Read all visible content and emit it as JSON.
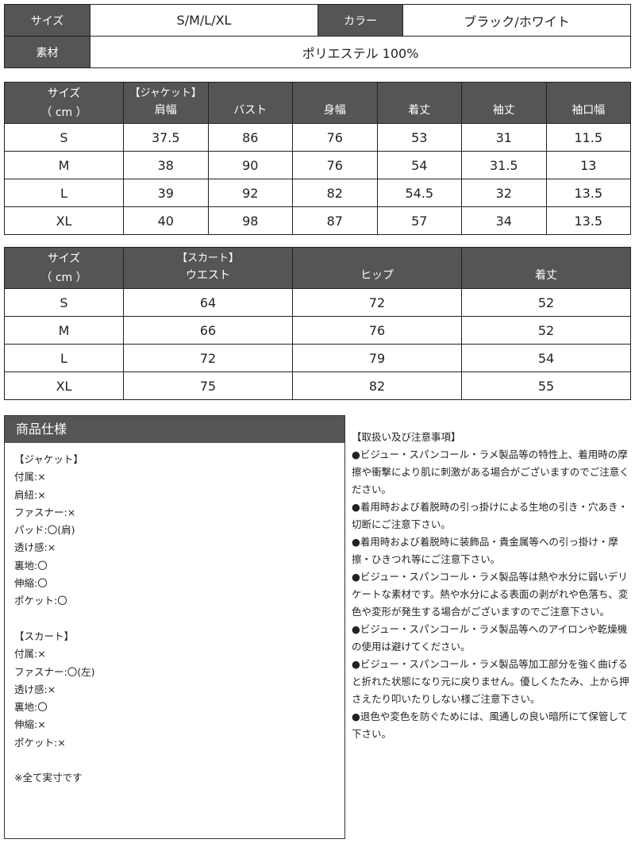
{
  "info": {
    "size_label": "サイズ",
    "size_value": "S/M/L/XL",
    "color_label": "カラー",
    "color_value": "ブラック/ホワイト",
    "material_label": "素材",
    "material_value": "ポリエステル 100%"
  },
  "jacket": {
    "size_header": "サイズ",
    "unit": "（ cm ）",
    "group": "【ジャケット】",
    "columns": [
      "肩幅",
      "バスト",
      "身幅",
      "着丈",
      "袖丈",
      "袖口幅"
    ],
    "rows": [
      [
        "S",
        "37.5",
        "86",
        "76",
        "53",
        "31",
        "11.5"
      ],
      [
        "M",
        "38",
        "90",
        "76",
        "54",
        "31.5",
        "13"
      ],
      [
        "L",
        "39",
        "92",
        "82",
        "54.5",
        "32",
        "13.5"
      ],
      [
        "XL",
        "40",
        "98",
        "87",
        "57",
        "34",
        "13.5"
      ]
    ]
  },
  "skirt": {
    "size_header": "サイズ",
    "unit": "（ cm ）",
    "group": "【スカート】",
    "columns": [
      "ウエスト",
      "ヒップ",
      "着丈"
    ],
    "rows": [
      [
        "S",
        "64",
        "72",
        "52"
      ],
      [
        "M",
        "66",
        "76",
        "52"
      ],
      [
        "L",
        "72",
        "79",
        "54"
      ],
      [
        "XL",
        "75",
        "82",
        "55"
      ]
    ]
  },
  "spec": {
    "title": "商品仕様",
    "lines": [
      "【ジャケット】",
      "付属:×",
      "肩紐:×",
      "ファスナー:×",
      "パッド:〇(肩)",
      "透け感:×",
      "裏地:〇",
      "伸縮:〇",
      "ポケット:〇",
      "",
      "【スカート】",
      "付属:×",
      "ファスナー:〇(左)",
      "透け感:×",
      "裏地:〇",
      "伸縮:×",
      "ポケット:×",
      "",
      "※全て実寸です"
    ]
  },
  "notes": {
    "title": "【取扱い及び注意事項】",
    "items": [
      "●ビジュー・スパンコール・ラメ製品等の特性上、着用時の摩擦や衝撃により肌に刺激がある場合がございますのでご注意ください。",
      "●着用時および着脱時の引っ掛けによる生地の引き・穴あき・切断にご注意下さい。",
      "●着用時および着脱時に装飾品・貴金属等への引っ掛け・摩擦・ひきつれ等にご注意下さい。",
      "●ビジュー・スパンコール・ラメ製品等は熱や水分に弱いデリケートな素材です。熱や水分による表面の剥がれや色落ち、変色や変形が発生する場合がございますのでご注意下さい。",
      "●ビジュー・スパンコール・ラメ製品等へのアイロンや乾燥機の使用は避けてください。",
      "●ビジュー・スパンコール・ラメ製品等加工部分を強く曲げると折れた状態になり元に戻りません。優しくたたみ、上から押さえたり叩いたりしない様ご注意下さい。",
      "●退色や変色を防ぐためには、風通しの良い暗所にて保管して下さい。"
    ]
  }
}
